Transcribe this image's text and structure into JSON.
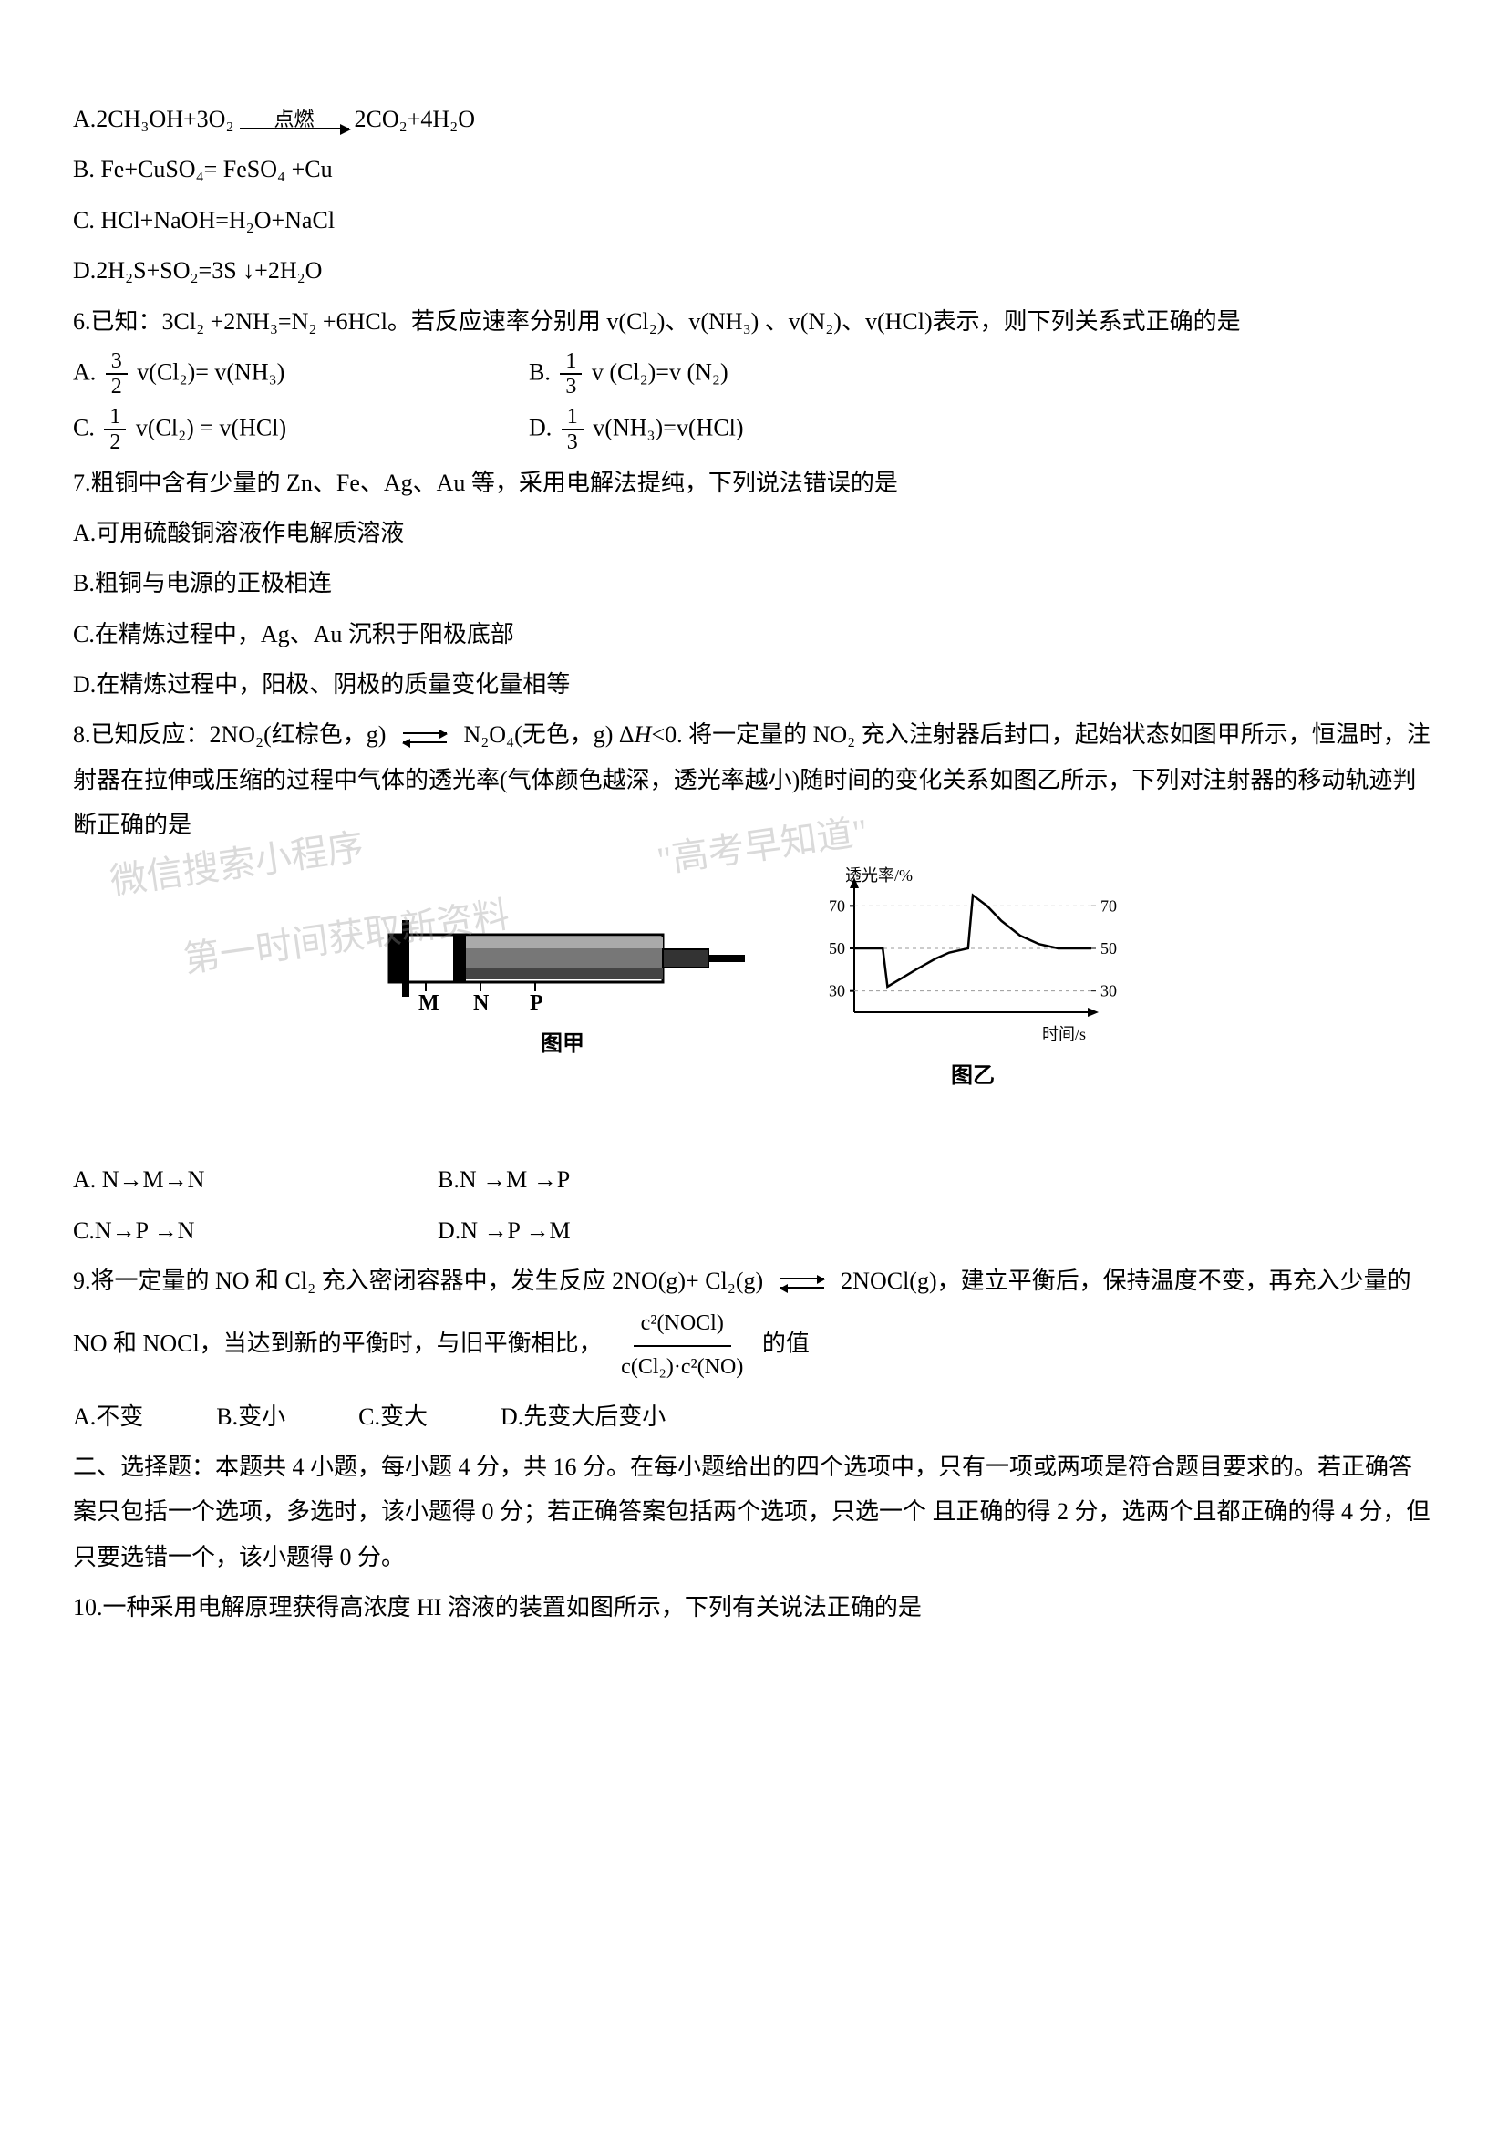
{
  "q5_options": {
    "A_left": "A.2CH₃OH+3O₂",
    "A_condition": "点燃",
    "A_right": "2CO₂+4H₂O",
    "B": "B. Fe+CuSO₄= FeSO₄ +Cu",
    "C": "C. HCl+NaOH=H₂O+NaCl",
    "D": "D.2H₂S+SO₂=3S ↓+2H₂O"
  },
  "q6": {
    "stem": "6.已知：3Cl₂ +2NH₃=N₂ +6HCl。若反应速率分别用 v(Cl₂)、v(NH₃) 、v(N₂)、v(HCl)表示，则下列关系式正确的是",
    "A_prefix": "A. ",
    "A_frac_num": "3",
    "A_frac_den": "2",
    "A_suffix": "v(Cl₂)= v(NH₃)",
    "B_prefix": "B. ",
    "B_frac_num": "1",
    "B_frac_den": "3",
    "B_suffix": "v (Cl₂)=v (N₂)",
    "C_prefix": "C.",
    "C_frac_num": "1",
    "C_frac_den": "2",
    "C_suffix": "v(Cl₂) = v(HCl)",
    "D_prefix": "D. ",
    "D_frac_num": "1",
    "D_frac_den": "3",
    "D_suffix": "v(NH₃)=v(HCl)"
  },
  "q7": {
    "stem": "7.粗铜中含有少量的 Zn、Fe、Ag、Au 等，采用电解法提纯，下列说法错误的是",
    "A": "A.可用硫酸铜溶液作电解质溶液",
    "B": "B.粗铜与电源的正极相连",
    "C": "C.在精炼过程中，Ag、Au 沉积于阳极底部",
    "D": "D.在精炼过程中，阳极、阴极的质量变化量相等"
  },
  "q8": {
    "stem1": "8.已知反应：2NO₂(红棕色，g) ",
    "stem2": "N₂O₄(无色，g)   Δ",
    "stem2b": "H",
    "stem2c": "<0. 将一定量的 NO₂ 充入注射器后封口，起始状态如图甲所示，恒温时，注射器在拉伸或压缩的过程中气体的透光率(气体颜色越深，透光率越小)随时间的变化关系如图乙所示，下列对注射器的移动轨迹判断正确的是",
    "A": "A. N→M→N",
    "B": "B.N →M →P",
    "C": "C.N→P →N",
    "D": "D.N →P →M",
    "fig1_label": "图甲",
    "fig2_label": "图乙",
    "syringe_marks": [
      "M",
      "N",
      "P"
    ],
    "chart": {
      "type": "line",
      "y_label": "透光率/%",
      "x_label": "时间/s",
      "y_ticks": [
        30,
        50,
        70
      ],
      "y_right_ticks": [
        30,
        50,
        70
      ],
      "xlim": [
        0,
        100
      ],
      "ylim": [
        20,
        80
      ],
      "line_color": "#000000",
      "grid_color": "#999999",
      "background_color": "#ffffff",
      "points": [
        [
          0,
          50
        ],
        [
          12,
          50
        ],
        [
          14,
          32
        ],
        [
          20,
          36
        ],
        [
          26,
          40
        ],
        [
          34,
          45
        ],
        [
          40,
          48
        ],
        [
          44,
          49
        ],
        [
          48,
          50
        ],
        [
          50,
          75
        ],
        [
          56,
          70
        ],
        [
          62,
          63
        ],
        [
          70,
          56
        ],
        [
          78,
          52
        ],
        [
          86,
          50
        ],
        [
          100,
          50
        ]
      ],
      "dash_line_y": 50
    },
    "syringe": {
      "body_color": "#555555",
      "body_dark": "#222222",
      "body_light": "#bbbbbb",
      "plunger_color": "#111111",
      "outline_color": "#000000",
      "background": "#ffffff"
    }
  },
  "q9": {
    "stem1": "9.将一定量的 NO 和 Cl₂ 充入密闭容器中，发生反应 2NO(g)+ Cl₂(g) ",
    "stem2": "2NOCl(g)，建立平衡后，保持温度不变，再充入少量的 NO 和 NOCl，当达到新的平衡时，与旧平衡相比，",
    "frac_num": "c²(NOCl)",
    "frac_den": "c(Cl₂)·c²(NO)",
    "stem3": "的值",
    "A": "A.不变",
    "B": "B.变小",
    "C": "C.变大",
    "D": "D.先变大后变小"
  },
  "section2": {
    "text": "二、选择题：本题共 4 小题，每小题 4 分，共 16 分。在每小题给出的四个选项中，只有一项或两项是符合题目要求的。若正确答案只包括一个选项，多选时，该小题得 0 分；若正确答案包括两个选项，只选一个 且正确的得 2 分，选两个且都正确的得 4 分，但只要选错一个，该小题得 0 分。"
  },
  "q10": {
    "stem": "10.一种采用电解原理获得高浓度 HI 溶液的装置如图所示，下列有关说法正确的是"
  },
  "watermarks": {
    "wm1": "微信搜索小程序",
    "wm2": "第一时间获取新资料",
    "wm3": "\"高考早知道\"",
    "wm4": ""
  },
  "colors": {
    "text": "#000000",
    "background": "#ffffff",
    "watermark": "rgba(150,150,150,0.35)"
  }
}
